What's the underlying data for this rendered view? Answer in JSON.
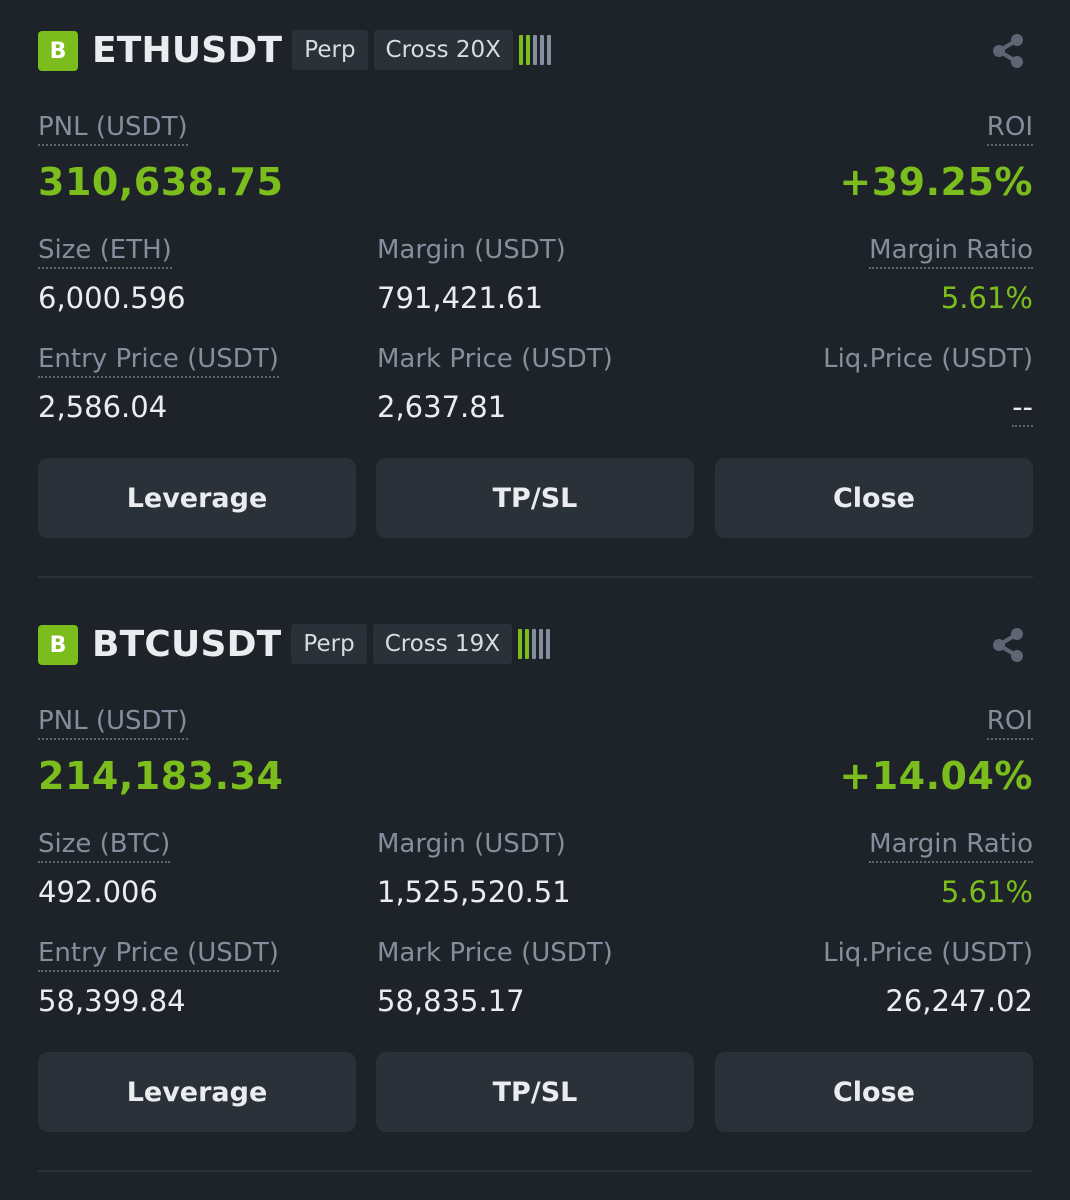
{
  "positions": [
    {
      "exchange_badge": "B",
      "symbol": "ETHUSDT",
      "tags": [
        "Perp",
        "Cross 20X"
      ],
      "risk_bars": {
        "filled": 2,
        "total": 5
      },
      "pnl_label": "PNL (USDT)",
      "pnl_value": "310,638.75",
      "roi_label": "ROI",
      "roi_value": "+39.25%",
      "size_label": "Size (ETH)",
      "size_value": "6,000.596",
      "margin_label": "Margin (USDT)",
      "margin_value": "791,421.61",
      "margin_ratio_label": "Margin Ratio",
      "margin_ratio_value": "5.61%",
      "entry_label": "Entry Price (USDT)",
      "entry_value": "2,586.04",
      "mark_label": "Mark Price (USDT)",
      "mark_value": "2,637.81",
      "liq_label": "Liq.Price (USDT)",
      "liq_value": "--",
      "buttons": [
        "Leverage",
        "TP/SL",
        "Close"
      ]
    },
    {
      "exchange_badge": "B",
      "symbol": "BTCUSDT",
      "tags": [
        "Perp",
        "Cross 19X"
      ],
      "risk_bars": {
        "filled": 2,
        "total": 5
      },
      "pnl_label": "PNL (USDT)",
      "pnl_value": "214,183.34",
      "roi_label": "ROI",
      "roi_value": "+14.04%",
      "size_label": "Size (BTC)",
      "size_value": "492.006",
      "margin_label": "Margin (USDT)",
      "margin_value": "1,525,520.51",
      "margin_ratio_label": "Margin Ratio",
      "margin_ratio_value": "5.61%",
      "entry_label": "Entry Price (USDT)",
      "entry_value": "58,399.84",
      "mark_label": "Mark Price (USDT)",
      "mark_value": "58,835.17",
      "liq_label": "Liq.Price (USDT)",
      "liq_value": "26,247.02",
      "buttons": [
        "Leverage",
        "TP/SL",
        "Close"
      ]
    }
  ],
  "colors": {
    "background": "#1e2329",
    "accent_green": "#7bbd1c",
    "button_bg": "#2b3139",
    "muted_text": "#848e9c",
    "primary_text": "#eaecef"
  },
  "icons": {
    "share": "share-icon"
  }
}
